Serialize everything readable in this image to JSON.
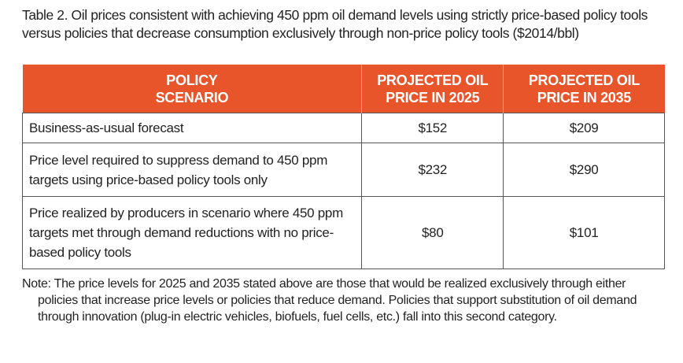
{
  "title": "Table 2. Oil prices consistent with achieving 450 ppm oil demand levels using strictly price-based policy tools versus policies that decrease consumption exclusively through non-price policy tools ($2014/bbl)",
  "table": {
    "header": [
      "POLICY SCENARIO",
      "PROJECTED OIL PRICE IN 2025",
      "PROJECTED OIL PRICE IN 2035"
    ],
    "rows": [
      [
        "Business-as-usual forecast",
        "$152",
        "$209"
      ],
      [
        "Price level required to suppress demand to 450 ppm targets using price-based policy tools only",
        "$232",
        "$290"
      ],
      [
        "Price realized by producers in scenario where 450 ppm targets met through demand reductions with no price-based policy tools",
        "$80",
        "$101"
      ]
    ]
  },
  "note": "Note: The price levels for 2025 and 2035 stated above are those that would be realized exclusively through either policies that increase price levels or policies that reduce demand. Policies that support substitution of oil demand through innovation (plug-in electric vehicles, biofuels, fuel cells, etc.) fall into this second category."
}
